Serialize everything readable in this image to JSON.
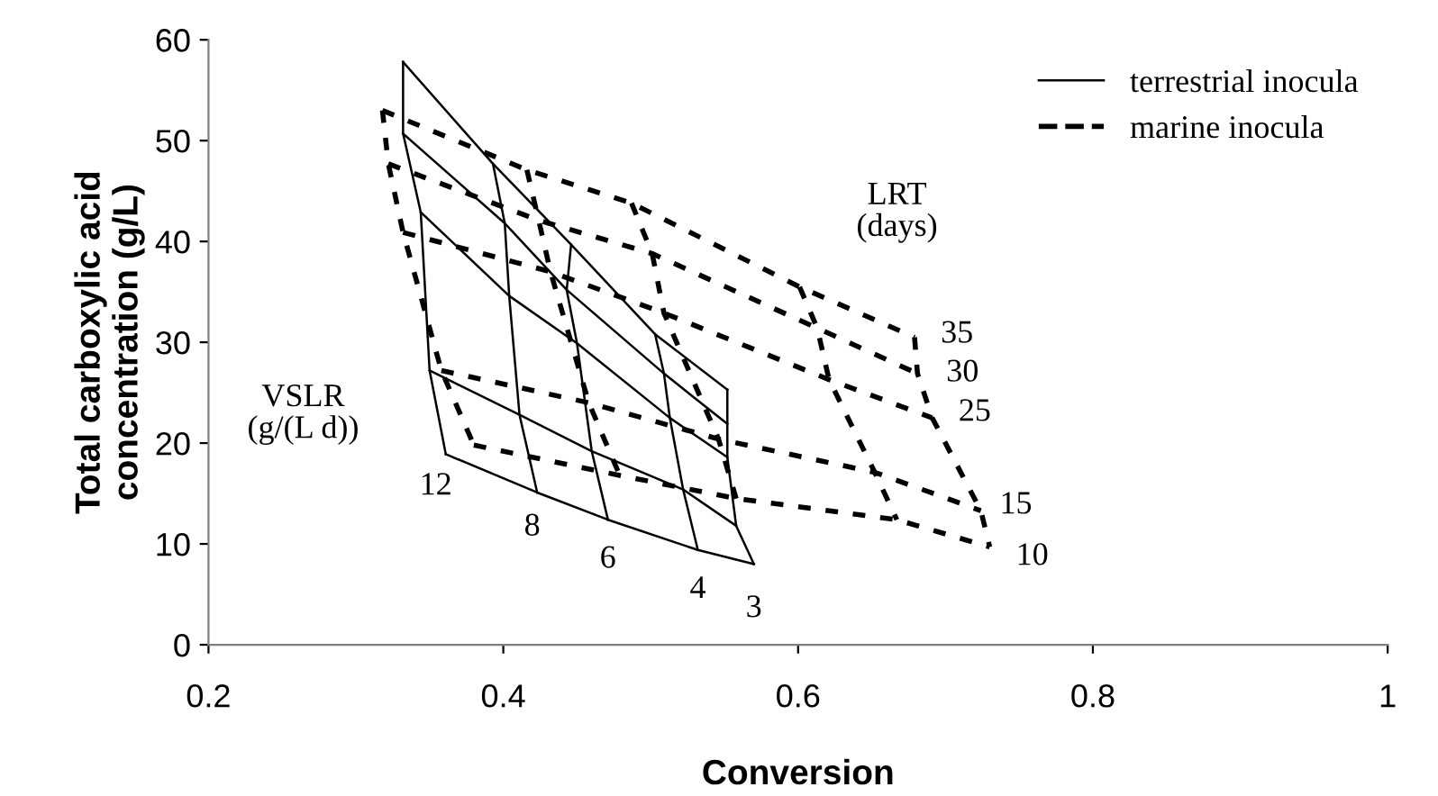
{
  "chart_data": {
    "type": "line",
    "xlabel": "Conversion",
    "ylabel": "Total carboxylic acid\nconcentration (g/L)",
    "xlim": [
      0.2,
      1
    ],
    "xticks": [
      0.2,
      0.4,
      0.6,
      0.8,
      1
    ],
    "ylim": [
      0,
      60
    ],
    "yticks": [
      0,
      10,
      20,
      30,
      40,
      50,
      60
    ],
    "grid": false,
    "legend": "top right",
    "marker": "none",
    "series": [
      {
        "name": "terrestrial inocula",
        "color": "#000000",
        "line_style": "solid",
        "x": [
          0.332,
          0.332,
          0.344,
          0.35,
          0.361
        ],
        "values": [
          57.8,
          50.7,
          42.9,
          27.2,
          18.9
        ]
      },
      {
        "color": "#000000",
        "line_style": "solid",
        "x": [
          0.393,
          0.401,
          0.404,
          0.411,
          0.423
        ],
        "values": [
          47.7,
          41.8,
          34.6,
          22.8,
          15.1
        ]
      },
      {
        "color": "#000000",
        "line_style": "solid",
        "x": [
          0.446,
          0.443,
          0.45,
          0.46,
          0.471
        ],
        "values": [
          39.7,
          35.2,
          29.9,
          19.2,
          12.4
        ]
      },
      {
        "color": "#000000",
        "line_style": "solid",
        "x": [
          0.503,
          0.509,
          0.513,
          0.522,
          0.532
        ],
        "values": [
          30.8,
          26.9,
          22.5,
          15.4,
          9.4
        ]
      },
      {
        "color": "#000000",
        "line_style": "solid",
        "x": [
          0.552,
          0.552,
          0.552,
          0.558,
          0.57
        ],
        "values": [
          25.3,
          21.9,
          18.6,
          11.8,
          8.0
        ]
      },
      {
        "color": "#000000",
        "line_style": "solid",
        "x": [
          0.332,
          0.393,
          0.446,
          0.503,
          0.552
        ],
        "values": [
          57.8,
          47.7,
          39.7,
          30.8,
          25.3
        ]
      },
      {
        "color": "#000000",
        "line_style": "solid",
        "x": [
          0.332,
          0.401,
          0.443,
          0.509,
          0.552
        ],
        "values": [
          50.7,
          41.8,
          35.2,
          26.9,
          21.9
        ]
      },
      {
        "color": "#000000",
        "line_style": "solid",
        "x": [
          0.344,
          0.404,
          0.45,
          0.513,
          0.552
        ],
        "values": [
          42.9,
          34.6,
          29.9,
          22.5,
          18.6
        ]
      },
      {
        "color": "#000000",
        "line_style": "solid",
        "x": [
          0.35,
          0.411,
          0.46,
          0.522,
          0.558
        ],
        "values": [
          27.2,
          22.8,
          19.2,
          15.4,
          11.8
        ]
      },
      {
        "color": "#000000",
        "line_style": "solid",
        "x": [
          0.361,
          0.423,
          0.471,
          0.532,
          0.57
        ],
        "values": [
          18.9,
          15.1,
          12.4,
          9.4,
          8.0
        ]
      },
      {
        "name": "marine inocula",
        "color": "#000000",
        "line_style": "dashed",
        "x": [
          0.318,
          0.322,
          0.332,
          0.358,
          0.38
        ],
        "values": [
          53.0,
          47.7,
          40.9,
          27.2,
          19.8
        ]
      },
      {
        "color": "#000000",
        "line_style": "dashed",
        "x": [
          0.416,
          0.424,
          0.432,
          0.458,
          0.479
        ],
        "values": [
          47.1,
          42.1,
          37.0,
          24.0,
          16.8
        ]
      },
      {
        "color": "#000000",
        "line_style": "dashed",
        "x": [
          0.487,
          0.501,
          0.509,
          0.546,
          0.558
        ],
        "values": [
          43.8,
          38.8,
          32.9,
          20.4,
          14.5
        ]
      },
      {
        "color": "#000000",
        "line_style": "dashed",
        "x": [
          0.601,
          0.613,
          0.621,
          0.652,
          0.667
        ],
        "values": [
          35.5,
          31.4,
          26.3,
          17.1,
          12.4
        ]
      },
      {
        "color": "#000000",
        "line_style": "dashed",
        "x": [
          0.679,
          0.681,
          0.691,
          0.724,
          0.73
        ],
        "values": [
          30.5,
          26.9,
          22.5,
          13.3,
          9.7
        ]
      },
      {
        "color": "#000000",
        "line_style": "dashed",
        "x": [
          0.318,
          0.416,
          0.487,
          0.601,
          0.679
        ],
        "values": [
          53.0,
          47.1,
          43.8,
          35.5,
          30.5
        ]
      },
      {
        "color": "#000000",
        "line_style": "dashed",
        "x": [
          0.322,
          0.424,
          0.501,
          0.613,
          0.681
        ],
        "values": [
          47.7,
          42.1,
          38.8,
          31.4,
          26.9
        ]
      },
      {
        "color": "#000000",
        "line_style": "dashed",
        "x": [
          0.332,
          0.432,
          0.509,
          0.621,
          0.691
        ],
        "values": [
          40.9,
          37.0,
          32.9,
          26.3,
          22.5
        ]
      },
      {
        "color": "#000000",
        "line_style": "dashed",
        "x": [
          0.358,
          0.458,
          0.546,
          0.652,
          0.724
        ],
        "values": [
          27.2,
          24.0,
          20.4,
          17.1,
          13.3
        ]
      },
      {
        "color": "#000000",
        "line_style": "dashed",
        "x": [
          0.38,
          0.479,
          0.558,
          0.667,
          0.73
        ],
        "values": [
          19.8,
          16.8,
          14.5,
          12.4,
          9.7
        ]
      }
    ],
    "annotations": [
      "LRT\n(days)",
      "VSLR\n(g/(L d))",
      "12",
      "8",
      "6",
      "4",
      "3",
      "35",
      "30",
      "25",
      "15",
      "10"
    ]
  }
}
